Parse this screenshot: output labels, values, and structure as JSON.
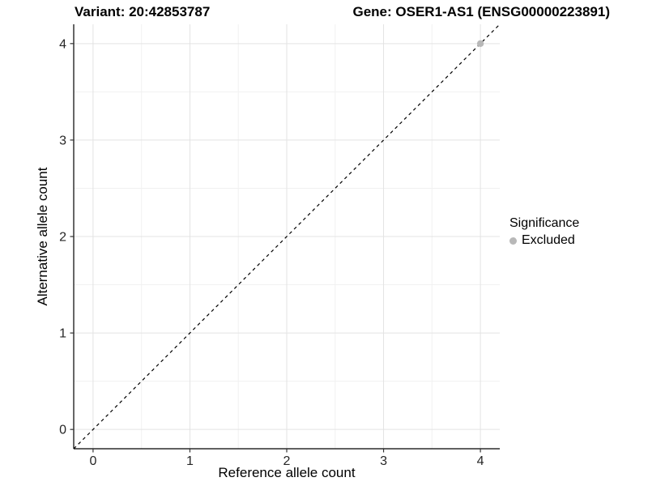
{
  "titles": {
    "variant": "Variant: 20:42853787",
    "gene": "Gene: OSER1-AS1 (ENSG00000223891)"
  },
  "chart_data": {
    "type": "scatter",
    "title_left": "Variant: 20:42853787",
    "title_right": "Gene: OSER1-AS1 (ENSG00000223891)",
    "xlabel": "Reference allele count",
    "ylabel": "Alternative allele count",
    "xlim": [
      0,
      4
    ],
    "ylim": [
      0,
      4
    ],
    "x_ticks": [
      0,
      1,
      2,
      3,
      4
    ],
    "y_ticks": [
      0,
      1,
      2,
      3,
      4
    ],
    "expansion": 0.05,
    "grid": "major+minor",
    "reference_line": {
      "type": "abline",
      "slope": 1,
      "intercept": 0,
      "style": "dashed",
      "color": "#000000"
    },
    "series": [
      {
        "name": "Excluded",
        "color": "#b8b8b8",
        "points": [
          {
            "x": 4,
            "y": 4
          }
        ]
      }
    ],
    "legend": {
      "title": "Significance",
      "position": "right",
      "items": [
        {
          "label": "Excluded",
          "color": "#b8b8b8"
        }
      ]
    },
    "colors": {
      "grid_major": "#e3e3e3",
      "grid_minor": "#f1f1f1",
      "axis_line": "#000000",
      "tick_mark": "#333333",
      "tick_label": "#262626",
      "background": "#ffffff"
    }
  }
}
